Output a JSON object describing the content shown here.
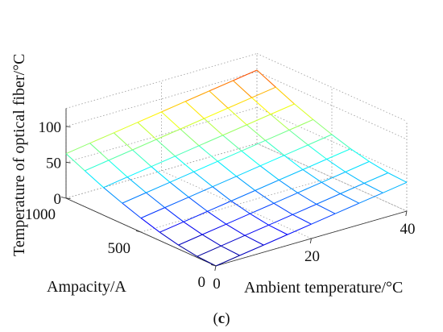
{
  "chart_data": {
    "type": "surface",
    "caption": "c",
    "xlabel": "Ambient temperature/°C",
    "ylabel": "Ampacity/A",
    "zlabel": "Temperature of optical fiber/°C",
    "x_ticks": [
      "0",
      "20",
      "40"
    ],
    "y_ticks": [
      "0",
      "500",
      "1000"
    ],
    "z_ticks": [
      "0",
      "50",
      "100"
    ],
    "xlim": [
      0,
      40
    ],
    "ylim": [
      0,
      1000
    ],
    "zlim": [
      0,
      125
    ],
    "grid": true,
    "colormap": "jet",
    "x": [
      0,
      5,
      10,
      15,
      20,
      25,
      30,
      35,
      40
    ],
    "y": [
      0,
      125,
      250,
      375,
      500,
      625,
      750,
      875,
      1000
    ],
    "z": [
      [
        0,
        5,
        10,
        15,
        20,
        25,
        30,
        35,
        40
      ],
      [
        1.5,
        6.5,
        11.5,
        16.5,
        21.5,
        26.5,
        31.5,
        36.5,
        41.5
      ],
      [
        5.5,
        10.5,
        15.5,
        20.5,
        25.5,
        30.5,
        35.5,
        40.5,
        45.5
      ],
      [
        11.5,
        16.5,
        21.5,
        26.5,
        31.5,
        36.5,
        41.5,
        46.5,
        51.5
      ],
      [
        19.5,
        24.5,
        29.5,
        34.5,
        39.5,
        44.5,
        49.5,
        54.5,
        59.5
      ],
      [
        28.5,
        33.5,
        38.5,
        43.5,
        48.5,
        53.5,
        58.5,
        63.5,
        68.5
      ],
      [
        38.5,
        43.5,
        48.5,
        53.5,
        58.5,
        63.5,
        68.5,
        73.5,
        78.5
      ],
      [
        50,
        55,
        60,
        65,
        70,
        75,
        80,
        85,
        90
      ],
      [
        62,
        67,
        72,
        77,
        82,
        87,
        92,
        97,
        102
      ]
    ]
  }
}
